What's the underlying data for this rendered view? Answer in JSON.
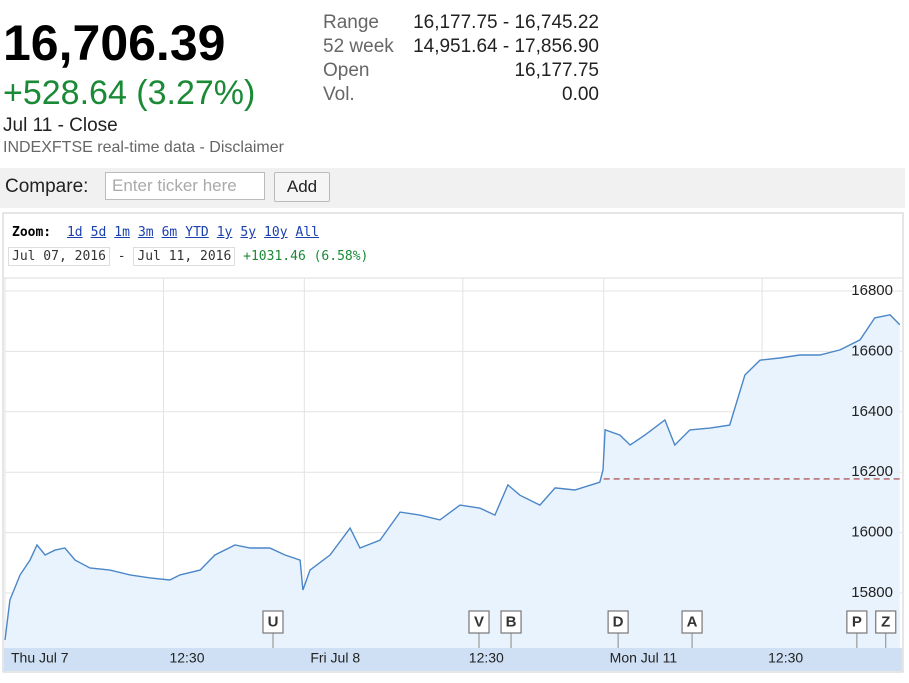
{
  "header": {
    "price": "16,706.39",
    "change": "+528.64 (3.27%)",
    "date": "Jul 11 - Close",
    "source": "INDEXFTSE real-time data - Disclaimer"
  },
  "stats": [
    [
      "Range",
      "16,177.75 - 16,745.22"
    ],
    [
      "52 week",
      "14,951.64 - 17,856.90"
    ],
    [
      "Open",
      "16,177.75"
    ],
    [
      "Vol.",
      "0.00"
    ]
  ],
  "compare": {
    "label": "Compare:",
    "placeholder": "Enter ticker here",
    "button": "Add"
  },
  "zoom": {
    "label": "Zoom:",
    "options": [
      "1d",
      "5d",
      "1m",
      "3m",
      "6m",
      "YTD",
      "1y",
      "5y",
      "10y",
      "All"
    ]
  },
  "range": {
    "start": "Jul 07, 2016",
    "separator": "-",
    "end": "Jul 11, 2016",
    "change": "+1031.46 (6.58%)"
  },
  "chart_data": {
    "type": "line",
    "color": "#4a86c8",
    "fill": "#e9f3fd",
    "x": [
      0,
      0.14,
      0.43,
      0.71,
      0.91,
      1.14,
      1.42,
      1.7,
      1.99,
      2.41,
      2.98,
      3.55,
      4.12,
      4.68,
      4.97,
      5.54,
      5.96,
      6.53,
      6.96,
      7.52,
      7.95,
      8.38,
      8.46,
      8.66,
      9.23,
      9.8,
      10.08,
      10.65,
      11.22,
      11.78,
      12.35,
      12.92,
      13.49,
      13.91,
      14.28,
      14.62,
      15.19,
      15.62,
      16.18,
      16.89,
      16.98,
      17.04,
      17.46,
      17.75,
      18.17,
      18.74,
      19.02,
      19.45,
      20.02,
      20.58,
      21.01,
      21.44,
      22.0,
      22.57,
      23.14,
      23.71,
      24.28,
      24.7,
      25.13,
      25.41
    ],
    "values": [
      15644,
      15777,
      15860,
      15909,
      15959,
      15926,
      15942,
      15949,
      15909,
      15883,
      15876,
      15860,
      15850,
      15843,
      15860,
      15876,
      15926,
      15959,
      15949,
      15949,
      15926,
      15909,
      15810,
      15876,
      15926,
      16015,
      15949,
      15975,
      16068,
      16058,
      16042,
      16091,
      16081,
      16058,
      16158,
      16124,
      16091,
      16148,
      16141,
      16167,
      16207,
      16340,
      16323,
      16290,
      16323,
      16373,
      16290,
      16340,
      16346,
      16356,
      16522,
      16571,
      16578,
      16588,
      16588,
      16605,
      16638,
      16711,
      16721,
      16688
    ],
    "reference_value": 16177.75,
    "reference_color": "#a33a3a",
    "xlim": [
      0,
      25.5
    ],
    "ylim": [
      15618,
      16843
    ],
    "yticks": [
      15800,
      16000,
      16200,
      16400,
      16600,
      16800
    ],
    "xticks": [
      {
        "value": 0,
        "label": "Thu Jul 7"
      },
      {
        "value": 4.5,
        "label": "12:30"
      },
      {
        "value": 8.5,
        "label": "Fri Jul 8"
      },
      {
        "value": 13,
        "label": "12:30"
      },
      {
        "value": 17,
        "label": "Mon Jul 11"
      },
      {
        "value": 21.5,
        "label": "12:30"
      }
    ],
    "grid": true,
    "events": [
      {
        "label": "U",
        "x": 7.61
      },
      {
        "label": "V",
        "x": 13.46
      },
      {
        "label": "B",
        "x": 14.37
      },
      {
        "label": "D",
        "x": 17.41
      },
      {
        "label": "A",
        "x": 19.51
      },
      {
        "label": "P",
        "x": 24.19
      },
      {
        "label": "Z",
        "x": 25.01
      }
    ]
  }
}
